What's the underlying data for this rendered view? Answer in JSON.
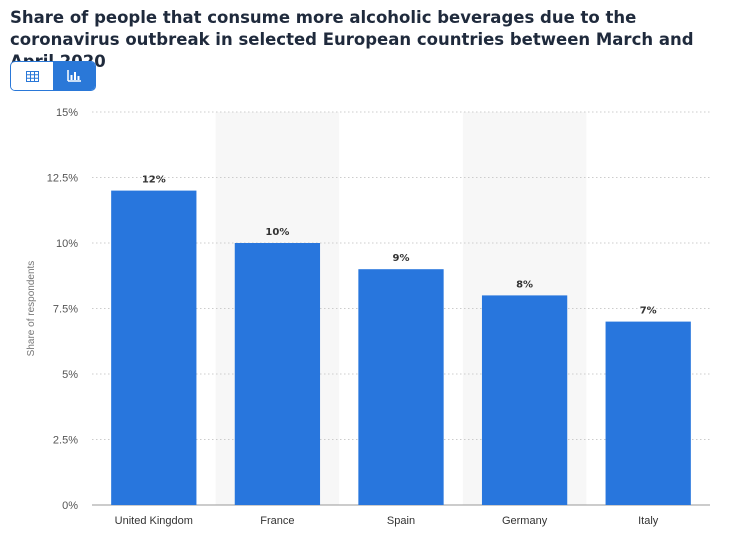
{
  "header": {
    "title": "Share of people that consume more alcoholic beverages due to the coronavirus outbreak in selected European countries between March and April 2020"
  },
  "view_toggle": {
    "table_icon": "table-icon",
    "chart_icon": "bar-chart-icon",
    "active": "chart"
  },
  "colors": {
    "bar": "#2876dd",
    "band": "#f7f7f7",
    "grid": "#cccccc",
    "accent": "#2a78d8"
  },
  "chart_data": {
    "type": "bar",
    "title": "Share of people that consume more alcoholic beverages due to the coronavirus outbreak in selected European countries between March and April 2020",
    "xlabel": "",
    "ylabel": "Share of respondents",
    "categories": [
      "United Kingdom",
      "France",
      "Spain",
      "Germany",
      "Italy"
    ],
    "values": [
      12,
      10,
      9,
      8,
      7
    ],
    "value_labels": [
      "12%",
      "10%",
      "9%",
      "8%",
      "7%"
    ],
    "ylim": [
      0,
      15
    ],
    "yticks": [
      0,
      2.5,
      5,
      7.5,
      10,
      12.5,
      15
    ],
    "ytick_labels": [
      "0%",
      "2.5%",
      "5%",
      "7.5%",
      "10%",
      "12.5%",
      "15%"
    ],
    "grid": true,
    "legend": "none"
  }
}
